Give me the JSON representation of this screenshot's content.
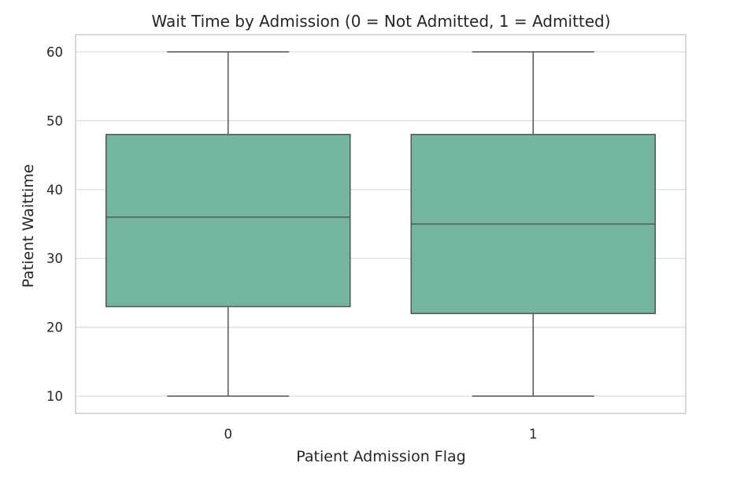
{
  "chart_data": {
    "type": "box",
    "title": "Wait Time by Admission (0 = Not Admitted, 1 = Admitted)",
    "xlabel": "Patient Admission Flag",
    "ylabel": "Patient Waittime",
    "categories": [
      "0",
      "1"
    ],
    "boxes": [
      {
        "category": "0",
        "min": 10,
        "q1": 23,
        "median": 36,
        "q3": 48,
        "max": 60
      },
      {
        "category": "1",
        "min": 10,
        "q1": 22,
        "median": 35,
        "q3": 48,
        "max": 60
      }
    ],
    "ylim": [
      7.5,
      62.5
    ],
    "yticks": [
      10,
      20,
      30,
      40,
      50,
      60
    ],
    "grid": true,
    "legend": "none",
    "colors": {
      "box_fill": "#74b5a1",
      "lines": "#555555",
      "grid": "#dddddd",
      "frame": "#cccccc"
    }
  }
}
